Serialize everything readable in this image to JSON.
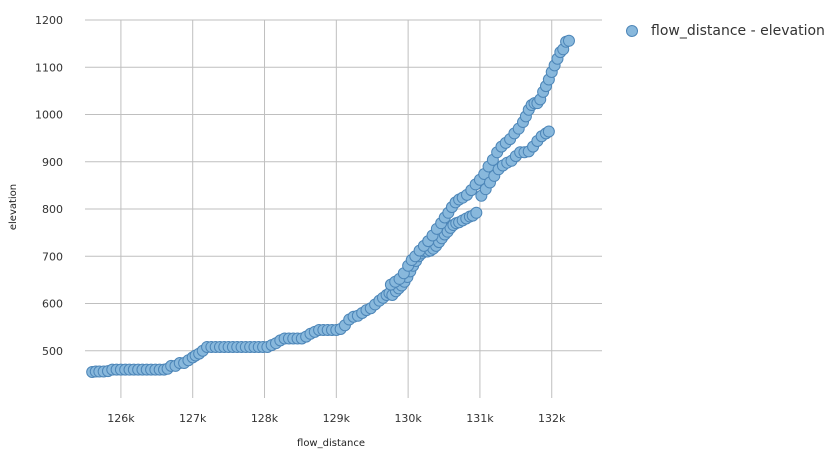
{
  "chart_data": {
    "type": "scatter",
    "xlabel": "flow_distance",
    "ylabel": "elevation",
    "xlim": [
      125500,
      132700
    ],
    "ylim": [
      400,
      1200
    ],
    "x_ticks": [
      126000,
      127000,
      128000,
      129000,
      130000,
      131000,
      132000
    ],
    "x_tick_labels": [
      "126k",
      "127k",
      "128k",
      "129k",
      "130k",
      "131k",
      "132k"
    ],
    "y_ticks": [
      500,
      600,
      700,
      800,
      900,
      1000,
      1100,
      1200
    ],
    "y_tick_labels": [
      "500",
      "600",
      "700",
      "800",
      "900",
      "1000",
      "1100",
      "1200"
    ],
    "grid": true,
    "legend_position": "top-right",
    "colors": {
      "point_fill": "#88b8dc",
      "point_stroke": "#4d86b8",
      "grid": "#bfbfbf"
    },
    "series": [
      {
        "name": "flow_distance - elevation",
        "points": [
          [
            125600,
            455
          ],
          [
            125650,
            456
          ],
          [
            125700,
            456
          ],
          [
            125760,
            456
          ],
          [
            125820,
            457
          ],
          [
            125880,
            460
          ],
          [
            125940,
            460
          ],
          [
            126000,
            460
          ],
          [
            126060,
            460
          ],
          [
            126120,
            460
          ],
          [
            126180,
            460
          ],
          [
            126240,
            460
          ],
          [
            126300,
            460
          ],
          [
            126360,
            460
          ],
          [
            126420,
            460
          ],
          [
            126480,
            460
          ],
          [
            126540,
            460
          ],
          [
            126600,
            460
          ],
          [
            126650,
            462
          ],
          [
            126700,
            468
          ],
          [
            126760,
            468
          ],
          [
            126820,
            474
          ],
          [
            126880,
            474
          ],
          [
            126940,
            480
          ],
          [
            127000,
            486
          ],
          [
            127040,
            490
          ],
          [
            127090,
            494
          ],
          [
            127140,
            500
          ],
          [
            127200,
            508
          ],
          [
            127260,
            508
          ],
          [
            127320,
            508
          ],
          [
            127380,
            508
          ],
          [
            127440,
            508
          ],
          [
            127500,
            508
          ],
          [
            127560,
            508
          ],
          [
            127620,
            508
          ],
          [
            127680,
            508
          ],
          [
            127740,
            508
          ],
          [
            127800,
            508
          ],
          [
            127860,
            508
          ],
          [
            127920,
            508
          ],
          [
            127980,
            508
          ],
          [
            128040,
            508
          ],
          [
            128100,
            512
          ],
          [
            128160,
            516
          ],
          [
            128220,
            522
          ],
          [
            128280,
            526
          ],
          [
            128340,
            526
          ],
          [
            128400,
            526
          ],
          [
            128460,
            526
          ],
          [
            128520,
            526
          ],
          [
            128580,
            530
          ],
          [
            128640,
            536
          ],
          [
            128700,
            540
          ],
          [
            128760,
            544
          ],
          [
            128820,
            544
          ],
          [
            128880,
            544
          ],
          [
            128940,
            544
          ],
          [
            129000,
            544
          ],
          [
            129060,
            546
          ],
          [
            129120,
            554
          ],
          [
            129180,
            566
          ],
          [
            129240,
            572
          ],
          [
            129300,
            574
          ],
          [
            129360,
            580
          ],
          [
            129420,
            586
          ],
          [
            129480,
            590
          ],
          [
            129540,
            598
          ],
          [
            129600,
            606
          ],
          [
            129650,
            612
          ],
          [
            129700,
            618
          ],
          [
            129740,
            622
          ],
          [
            129780,
            618
          ],
          [
            129830,
            626
          ],
          [
            129870,
            632
          ],
          [
            129910,
            638
          ],
          [
            129950,
            646
          ],
          [
            129990,
            656
          ],
          [
            130030,
            668
          ],
          [
            130070,
            680
          ],
          [
            130110,
            690
          ],
          [
            130150,
            700
          ],
          [
            130190,
            706
          ],
          [
            130230,
            710
          ],
          [
            130270,
            710
          ],
          [
            130310,
            712
          ],
          [
            130350,
            716
          ],
          [
            130390,
            722
          ],
          [
            130430,
            730
          ],
          [
            130470,
            738
          ],
          [
            130510,
            746
          ],
          [
            130550,
            752
          ],
          [
            130590,
            760
          ],
          [
            130630,
            766
          ],
          [
            130670,
            770
          ],
          [
            130710,
            772
          ],
          [
            130760,
            776
          ],
          [
            130810,
            780
          ],
          [
            130860,
            784
          ],
          [
            130900,
            786
          ],
          [
            130950,
            792
          ],
          [
            129760,
            640
          ],
          [
            129820,
            646
          ],
          [
            129880,
            652
          ],
          [
            129940,
            664
          ],
          [
            130000,
            680
          ],
          [
            130050,
            692
          ],
          [
            130100,
            700
          ],
          [
            130160,
            712
          ],
          [
            130220,
            722
          ],
          [
            130280,
            732
          ],
          [
            130340,
            744
          ],
          [
            130400,
            758
          ],
          [
            130460,
            770
          ],
          [
            130510,
            782
          ],
          [
            130560,
            792
          ],
          [
            130610,
            804
          ],
          [
            130660,
            814
          ],
          [
            130710,
            820
          ],
          [
            130760,
            824
          ],
          [
            130820,
            830
          ],
          [
            130880,
            840
          ],
          [
            130940,
            852
          ],
          [
            131000,
            862
          ],
          [
            131060,
            874
          ],
          [
            131120,
            890
          ],
          [
            131180,
            904
          ],
          [
            131240,
            920
          ],
          [
            131300,
            932
          ],
          [
            131360,
            940
          ],
          [
            131420,
            948
          ],
          [
            131480,
            960
          ],
          [
            131540,
            970
          ],
          [
            131600,
            984
          ],
          [
            131640,
            996
          ],
          [
            131680,
            1010
          ],
          [
            131720,
            1020
          ],
          [
            131760,
            1024
          ],
          [
            131800,
            1024
          ],
          [
            131840,
            1032
          ],
          [
            131880,
            1048
          ],
          [
            131920,
            1060
          ],
          [
            131960,
            1074
          ],
          [
            132000,
            1090
          ],
          [
            132040,
            1104
          ],
          [
            132080,
            1118
          ],
          [
            132120,
            1132
          ],
          [
            132160,
            1138
          ],
          [
            132200,
            1154
          ],
          [
            132240,
            1156
          ],
          [
            131020,
            828
          ],
          [
            131080,
            842
          ],
          [
            131140,
            856
          ],
          [
            131200,
            870
          ],
          [
            131260,
            884
          ],
          [
            131320,
            892
          ],
          [
            131380,
            898
          ],
          [
            131440,
            902
          ],
          [
            131500,
            912
          ],
          [
            131560,
            920
          ],
          [
            131620,
            920
          ],
          [
            131680,
            922
          ],
          [
            131740,
            932
          ],
          [
            131800,
            944
          ],
          [
            131860,
            954
          ],
          [
            131920,
            960
          ],
          [
            131960,
            964
          ]
        ]
      }
    ]
  }
}
